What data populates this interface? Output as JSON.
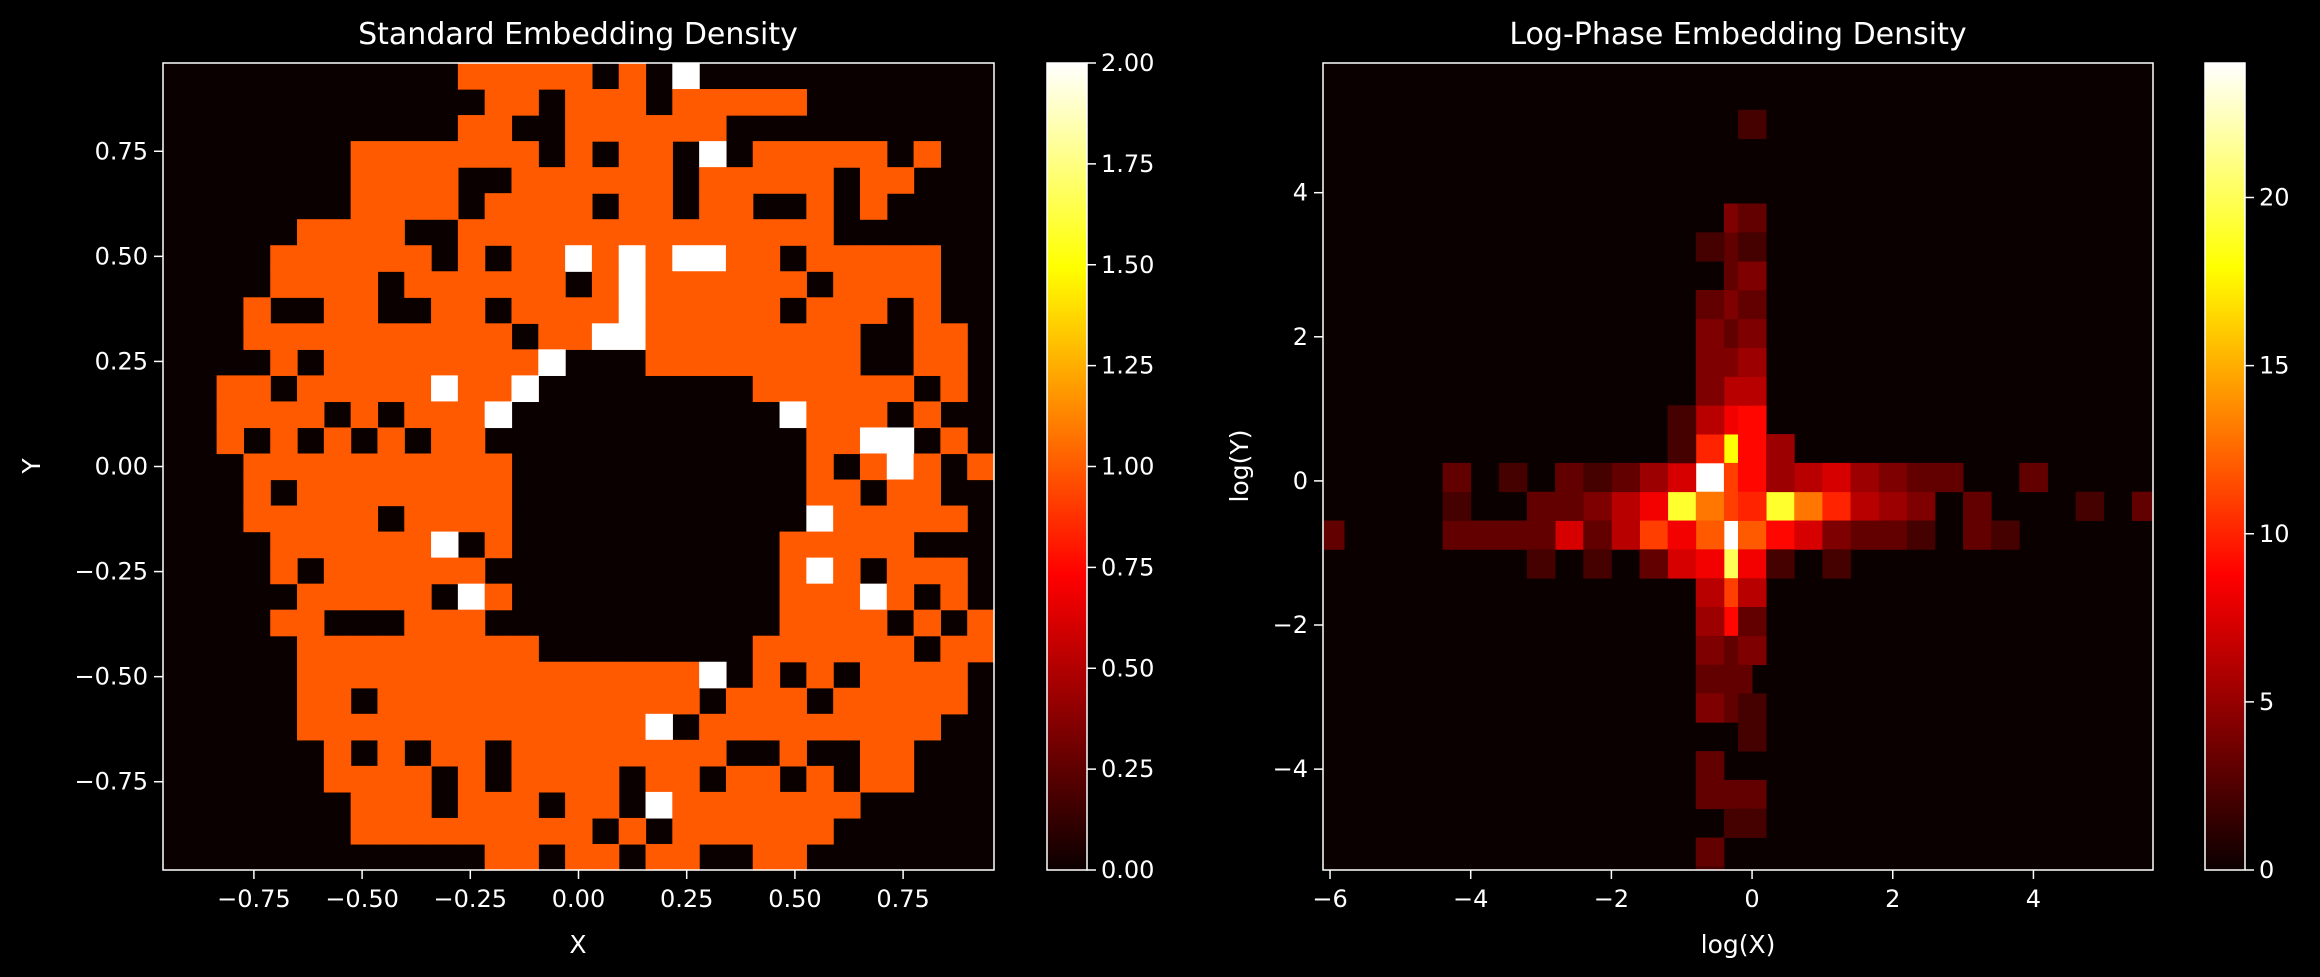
{
  "figure": {
    "background": "#000000",
    "foreground": "#ffffff",
    "colormap": "hot"
  },
  "chart_data": [
    {
      "type": "heatmap",
      "title": "Standard Embedding Density",
      "xlabel": "X",
      "ylabel": "Y",
      "xlim": [
        -0.96,
        0.96
      ],
      "ylim": [
        -0.96,
        0.96
      ],
      "xticks": [
        -0.75,
        -0.5,
        -0.25,
        0.0,
        0.25,
        0.5,
        0.75
      ],
      "xtick_labels": [
        "−0.75",
        "−0.50",
        "−0.25",
        "0.00",
        "0.25",
        "0.50",
        "0.75"
      ],
      "yticks": [
        -0.75,
        -0.5,
        -0.25,
        0.0,
        0.25,
        0.5,
        0.75
      ],
      "ytick_labels": [
        "−0.75",
        "−0.50",
        "−0.25",
        "0.00",
        "0.25",
        "0.50",
        "0.75"
      ],
      "colorbar": {
        "vmin": 0,
        "vmax": 2,
        "ticks": [
          0,
          0.25,
          0.5,
          0.75,
          1.0,
          1.25,
          1.5,
          1.75,
          2.0
        ],
        "tick_labels": [
          "0.00",
          "0.25",
          "0.50",
          "0.75",
          "1.00",
          "1.25",
          "1.50",
          "1.75",
          "2.00"
        ]
      },
      "grid": false,
      "z_top_to_bottom": [
        "0000000000011111010200000000000",
        "0000000000001101110111110000000",
        "0000000000011001111110000000000",
        "0000000111111101011020111110100",
        "0000000111100111111011111011000",
        "0000000111101111011011001010000",
        "0000011110011111111111111000000",
        "0000111111010112121221101111100",
        "0000111101111110121111110111100",
        "0001001100110111121111101110100",
        "0001111111111011221111111100110",
        "0000101111111120001111111100110",
        "0011011111211200000000111111010",
        "0011110101112000000000021110100",
        "0010101010110000000000001122010",
        "0001111111111000000000001012101",
        "0001011111111000000000001101100",
        "0001111101111000000000002111110",
        "0000111111201000000000011111000",
        "0000101111110000000000012101110",
        "0000011111021000000000011121010",
        "0000110001110000000000011110101",
        "0000011111111100000000111111011",
        "0000011111111111111120101011110",
        "0000011011111111111101110111110",
        "0000011111111111112011111111100",
        "0000001010110111111110010011000",
        "0000001111010111101101101011000",
        "0000000111011101102111111100000",
        "0000000111111111010111111000000",
        "0000000000001101101100110000000"
      ]
    },
    {
      "type": "heatmap",
      "title": "Log-Phase Embedding Density",
      "xlabel": "log(X)",
      "ylabel": "log(Y)",
      "xlim": [
        -6.1,
        5.7
      ],
      "ylim": [
        -5.4,
        5.8
      ],
      "xticks": [
        -6,
        -4,
        -2,
        0,
        2,
        4
      ],
      "xtick_labels": [
        "−6",
        "−4",
        "−2",
        "0",
        "2",
        "4"
      ],
      "yticks": [
        -4,
        -2,
        0,
        2,
        4
      ],
      "ytick_labels": [
        "−4",
        "−2",
        "0",
        "2",
        "4"
      ],
      "colorbar": {
        "vmin": 0,
        "vmax": 24,
        "ticks": [
          0,
          5,
          10,
          15,
          20
        ],
        "tick_labels": [
          "0",
          "5",
          "10",
          "15",
          "20"
        ]
      },
      "grid": false,
      "cells": [
        {
          "x": -0.6,
          "y": 0.05,
          "z": 24
        },
        {
          "x": -0.2,
          "y": -0.75,
          "z": 24
        },
        {
          "x": -1.0,
          "y": -0.35,
          "z": 19
        },
        {
          "x": 0.4,
          "y": -0.35,
          "z": 19
        },
        {
          "x": -0.2,
          "y": -1.15,
          "z": 20
        },
        {
          "x": -0.2,
          "y": 0.45,
          "z": 18
        },
        {
          "x": -0.6,
          "y": -0.35,
          "z": 13
        },
        {
          "x": -0.2,
          "y": -0.35,
          "z": 11
        },
        {
          "x": 0.0,
          "y": -0.75,
          "z": 12
        },
        {
          "x": 0.8,
          "y": -0.35,
          "z": 13
        },
        {
          "x": -0.2,
          "y": 0.05,
          "z": 11
        },
        {
          "x": -0.2,
          "y": -1.55,
          "z": 11
        },
        {
          "x": -1.4,
          "y": -0.35,
          "z": 8
        },
        {
          "x": -1.4,
          "y": -0.75,
          "z": 11
        },
        {
          "x": -0.6,
          "y": -0.75,
          "z": 12
        },
        {
          "x": 0.0,
          "y": 0.05,
          "z": 9
        },
        {
          "x": 0.0,
          "y": -0.35,
          "z": 10
        },
        {
          "x": -0.6,
          "y": 0.45,
          "z": 10
        },
        {
          "x": 0.0,
          "y": 0.45,
          "z": 9
        },
        {
          "x": -0.2,
          "y": 0.85,
          "z": 8
        },
        {
          "x": 0.0,
          "y": 0.85,
          "z": 9
        },
        {
          "x": -0.2,
          "y": -1.95,
          "z": 9
        },
        {
          "x": 1.2,
          "y": -0.35,
          "z": 10
        },
        {
          "x": 0.4,
          "y": -0.75,
          "z": 9
        },
        {
          "x": 0.8,
          "y": -0.75,
          "z": 7
        },
        {
          "x": -1.0,
          "y": -0.75,
          "z": 8
        },
        {
          "x": -1.0,
          "y": -1.15,
          "z": 7
        },
        {
          "x": -0.6,
          "y": -1.15,
          "z": 8
        },
        {
          "x": 0.0,
          "y": -1.15,
          "z": 8
        },
        {
          "x": -1.0,
          "y": 0.05,
          "z": 7
        },
        {
          "x": 0.8,
          "y": 0.05,
          "z": 6
        },
        {
          "x": 1.2,
          "y": 0.05,
          "z": 7
        },
        {
          "x": -1.8,
          "y": -0.35,
          "z": 6
        },
        {
          "x": -1.8,
          "y": -0.75,
          "z": 6
        },
        {
          "x": -2.6,
          "y": -0.75,
          "z": 7
        },
        {
          "x": -1.4,
          "y": 0.05,
          "z": 5
        },
        {
          "x": 0.4,
          "y": 0.05,
          "z": 5
        },
        {
          "x": 0.4,
          "y": 0.45,
          "z": 5
        },
        {
          "x": -0.6,
          "y": 0.85,
          "z": 6
        },
        {
          "x": -0.6,
          "y": -1.55,
          "z": 6
        },
        {
          "x": 0.0,
          "y": -1.55,
          "z": 6
        },
        {
          "x": -0.6,
          "y": -1.95,
          "z": 5
        },
        {
          "x": 1.6,
          "y": -0.35,
          "z": 6
        },
        {
          "x": 2.0,
          "y": -0.35,
          "z": 5
        },
        {
          "x": 1.6,
          "y": 0.05,
          "z": 5
        },
        {
          "x": 1.2,
          "y": -0.75,
          "z": 4
        },
        {
          "x": -0.2,
          "y": 1.25,
          "z": 6
        },
        {
          "x": 0.0,
          "y": 1.25,
          "z": 6
        },
        {
          "x": -0.2,
          "y": 1.65,
          "z": 4
        },
        {
          "x": 0.0,
          "y": 1.65,
          "z": 5
        },
        {
          "x": -0.6,
          "y": 1.65,
          "z": 4
        },
        {
          "x": -0.6,
          "y": 1.25,
          "z": 4
        },
        {
          "x": -0.6,
          "y": 2.05,
          "z": 4
        },
        {
          "x": -0.2,
          "y": 2.05,
          "z": 3
        },
        {
          "x": 0.0,
          "y": 2.05,
          "z": 4
        },
        {
          "x": -0.6,
          "y": 2.45,
          "z": 3
        },
        {
          "x": -0.2,
          "y": 2.45,
          "z": 4
        },
        {
          "x": 0.0,
          "y": 2.45,
          "z": 3
        },
        {
          "x": -0.2,
          "y": 2.85,
          "z": 3
        },
        {
          "x": 0.0,
          "y": 2.85,
          "z": 4
        },
        {
          "x": -0.2,
          "y": 3.25,
          "z": 3
        },
        {
          "x": -0.2,
          "y": 3.65,
          "z": 4
        },
        {
          "x": 0.0,
          "y": 3.65,
          "z": 3
        },
        {
          "x": 0.0,
          "y": 4.95,
          "z": 2
        },
        {
          "x": -2.2,
          "y": -0.35,
          "z": 4
        },
        {
          "x": -2.6,
          "y": -0.35,
          "z": 3
        },
        {
          "x": -2.6,
          "y": 0.05,
          "z": 3
        },
        {
          "x": -2.2,
          "y": -0.75,
          "z": 3
        },
        {
          "x": -3.0,
          "y": -0.35,
          "z": 3
        },
        {
          "x": -3.0,
          "y": -0.75,
          "z": 3
        },
        {
          "x": -3.4,
          "y": -0.75,
          "z": 3
        },
        {
          "x": -3.8,
          "y": -0.75,
          "z": 3
        },
        {
          "x": -4.2,
          "y": -0.75,
          "z": 3
        },
        {
          "x": -4.2,
          "y": -0.35,
          "z": 2
        },
        {
          "x": -4.2,
          "y": 0.05,
          "z": 3
        },
        {
          "x": -3.4,
          "y": 0.05,
          "z": 2
        },
        {
          "x": -1.8,
          "y": 0.05,
          "z": 3
        },
        {
          "x": -2.2,
          "y": 0.05,
          "z": 2
        },
        {
          "x": -3.0,
          "y": -1.15,
          "z": 2
        },
        {
          "x": -2.2,
          "y": -1.15,
          "z": 2
        },
        {
          "x": -1.4,
          "y": -1.15,
          "z": 3
        },
        {
          "x": -6.0,
          "y": -0.75,
          "z": 3
        },
        {
          "x": 2.0,
          "y": 0.05,
          "z": 4
        },
        {
          "x": 2.4,
          "y": -0.35,
          "z": 4
        },
        {
          "x": 2.4,
          "y": 0.05,
          "z": 3
        },
        {
          "x": 2.8,
          "y": 0.05,
          "z": 3
        },
        {
          "x": 2.0,
          "y": -0.75,
          "z": 3
        },
        {
          "x": 2.4,
          "y": -0.75,
          "z": 2
        },
        {
          "x": 1.6,
          "y": -0.75,
          "z": 3
        },
        {
          "x": 1.2,
          "y": -1.15,
          "z": 2
        },
        {
          "x": 0.4,
          "y": -1.15,
          "z": 2
        },
        {
          "x": 3.2,
          "y": -0.35,
          "z": 3
        },
        {
          "x": 3.2,
          "y": -0.75,
          "z": 3
        },
        {
          "x": 3.6,
          "y": -0.75,
          "z": 2
        },
        {
          "x": 4.0,
          "y": 0.05,
          "z": 3
        },
        {
          "x": 4.8,
          "y": -0.35,
          "z": 2
        },
        {
          "x": 5.6,
          "y": -0.35,
          "z": 3
        },
        {
          "x": -0.6,
          "y": -2.35,
          "z": 4
        },
        {
          "x": -0.2,
          "y": -2.35,
          "z": 3
        },
        {
          "x": 0.0,
          "y": -2.35,
          "z": 4
        },
        {
          "x": 0.0,
          "y": -1.95,
          "z": 3
        },
        {
          "x": -0.6,
          "y": -2.75,
          "z": 3
        },
        {
          "x": -0.2,
          "y": -2.75,
          "z": 3
        },
        {
          "x": -0.6,
          "y": -3.15,
          "z": 4
        },
        {
          "x": -0.2,
          "y": -3.15,
          "z": 3
        },
        {
          "x": 0.0,
          "y": -3.15,
          "z": 2
        },
        {
          "x": 0.0,
          "y": -3.55,
          "z": 2
        },
        {
          "x": -0.6,
          "y": -3.95,
          "z": 3
        },
        {
          "x": -0.6,
          "y": -4.35,
          "z": 3
        },
        {
          "x": -0.2,
          "y": -4.35,
          "z": 3
        },
        {
          "x": 0.0,
          "y": -4.35,
          "z": 3
        },
        {
          "x": -0.2,
          "y": -4.75,
          "z": 2
        },
        {
          "x": 0.0,
          "y": -4.75,
          "z": 2
        },
        {
          "x": -0.6,
          "y": -5.15,
          "z": 3
        },
        {
          "x": -0.6,
          "y": -5.55,
          "z": 2
        },
        {
          "x": -0.6,
          "y": 3.25,
          "z": 2
        },
        {
          "x": 0.0,
          "y": 3.25,
          "z": 2
        },
        {
          "x": -1.0,
          "y": 0.45,
          "z": 2
        },
        {
          "x": -1.0,
          "y": 0.85,
          "z": 2
        }
      ]
    }
  ]
}
